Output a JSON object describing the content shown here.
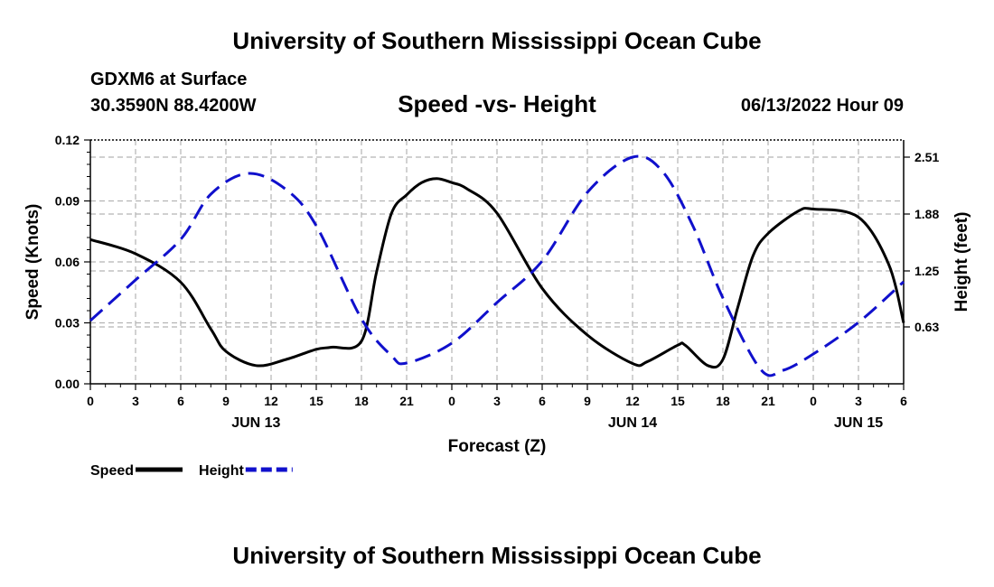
{
  "header": {
    "title": "University of Southern Mississippi Ocean Cube",
    "station": "GDXM6 at Surface",
    "coordinates": "30.3590N  88.4200W",
    "subtitle": "Speed -vs- Height",
    "datetime": "06/13/2022 Hour 09"
  },
  "footer": {
    "title": "University of Southern Mississippi Ocean Cube"
  },
  "colors": {
    "speed": "#000000",
    "height": "#1010cc",
    "grid": "#b4b4b4"
  },
  "chart_data": {
    "type": "line",
    "title": "Speed -vs- Height",
    "xlabel": "Forecast (Z)",
    "ylabel": "Speed (Knots)",
    "y2label": "Height (feet)",
    "x_range_hours": [
      0,
      54
    ],
    "x_tick_hours": [
      0,
      3,
      6,
      9,
      12,
      15,
      18,
      21,
      24,
      27,
      30,
      33,
      36,
      39,
      42,
      45,
      48,
      51,
      54
    ],
    "x_tick_labels": [
      "0",
      "3",
      "6",
      "9",
      "12",
      "15",
      "18",
      "21",
      "0",
      "3",
      "6",
      "9",
      "12",
      "15",
      "18",
      "21",
      "0",
      "3",
      "6"
    ],
    "date_labels": [
      {
        "hour": 11,
        "label": "JUN 13"
      },
      {
        "hour": 36,
        "label": "JUN 14"
      },
      {
        "hour": 51,
        "label": "JUN 15"
      }
    ],
    "ylim": [
      0,
      0.12
    ],
    "y_ticks": [
      0,
      0.03,
      0.06,
      0.09,
      0.12
    ],
    "y_tick_labels": [
      "0.00",
      "0.03",
      "0.06",
      "0.09",
      "0.12"
    ],
    "y2lim": [
      0,
      2.7
    ],
    "y2_ticks": [
      0.63,
      1.25,
      1.88,
      2.51
    ],
    "y2_tick_labels": [
      "0.63",
      "1.25",
      "1.88",
      "2.51"
    ],
    "series": [
      {
        "name": "Speed",
        "axis": "left",
        "style": "solid",
        "x": [
          0,
          3,
          6,
          8,
          9,
          11,
          13,
          15,
          16,
          18,
          19,
          20,
          21,
          22,
          23,
          24,
          25,
          27,
          30,
          33,
          36,
          37,
          39,
          39.5,
          41,
          42,
          43,
          44,
          45,
          47,
          48,
          51,
          53,
          54
        ],
        "y": [
          0.071,
          0.064,
          0.05,
          0.027,
          0.016,
          0.009,
          0.012,
          0.017,
          0.018,
          0.021,
          0.055,
          0.084,
          0.093,
          0.099,
          0.101,
          0.099,
          0.096,
          0.084,
          0.047,
          0.024,
          0.01,
          0.011,
          0.019,
          0.019,
          0.009,
          0.012,
          0.038,
          0.063,
          0.074,
          0.085,
          0.086,
          0.082,
          0.059,
          0.03
        ]
      },
      {
        "name": "Height",
        "axis": "right",
        "style": "dashed",
        "x": [
          0,
          3,
          6,
          8,
          10.5,
          13,
          15,
          18,
          20,
          21,
          24,
          27,
          30,
          33,
          36,
          38,
          40,
          42,
          44.5,
          46,
          48,
          51,
          54
        ],
        "y": [
          0.7,
          1.15,
          1.6,
          2.1,
          2.33,
          2.15,
          1.75,
          0.72,
          0.31,
          0.23,
          0.45,
          0.9,
          1.36,
          2.12,
          2.51,
          2.35,
          1.75,
          0.95,
          0.16,
          0.15,
          0.33,
          0.68,
          1.13
        ]
      }
    ],
    "legend": [
      {
        "label": "Speed",
        "style": "solid"
      },
      {
        "label": "Height",
        "style": "dashed"
      }
    ]
  }
}
